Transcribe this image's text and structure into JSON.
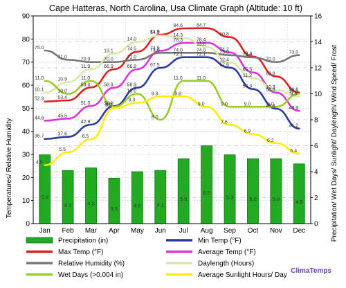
{
  "chart_data": {
    "type": "line",
    "title": "Cape Hatteras, North Carolina, Usa Climate Graph (Altitude: 10 ft)",
    "ylabel_left": "Temperatures/ Relative Humidity",
    "ylabel_right": "Precipitation/ Wet Days/ Sunlight/ Daylength/ Wind Speed/ Frost",
    "ylim_left": [
      0,
      90
    ],
    "ylim_right": [
      0,
      16
    ],
    "yticks_left": [
      "0",
      "10",
      "20",
      "30",
      "40",
      "50",
      "60",
      "70",
      "80",
      "90"
    ],
    "yticks_right": [
      "0",
      "2",
      "4",
      "6",
      "8",
      "10",
      "12",
      "14",
      "16"
    ],
    "categories": [
      "Jan",
      "Feb",
      "Mar",
      "Apr",
      "May",
      "Jun",
      "Jul",
      "Aug",
      "Sep",
      "Oct",
      "Nov",
      "Dec"
    ],
    "grid": true,
    "series": [
      {
        "name": "Precipitation (in)",
        "kind": "bar",
        "axis": "right",
        "color": "#22aa22",
        "values": [
          5.3,
          4.1,
          4.3,
          3.5,
          4.0,
          4.1,
          5.0,
          6.0,
          5.3,
          5.0,
          5.0,
          4.6
        ],
        "labels": [
          "5.3",
          "4.1",
          "4.3",
          "3.5",
          "4.0",
          "4.1",
          "5.0",
          "6.0",
          "5.3",
          "5.0",
          "5.0",
          "4.6"
        ]
      },
      {
        "name": "Min Temp (°F)",
        "kind": "line",
        "axis": "left",
        "color": "#2b3a9c",
        "values": [
          36.7,
          37.6,
          42.9,
          50.9,
          58.9,
          67.5,
          72.1,
          72.1,
          67.6,
          58.3,
          49.8,
          41.2
        ],
        "labels": [
          "36.7",
          "37.6",
          "42.9",
          "50.9",
          "58.9",
          "67.5",
          "72.1",
          "72.1",
          "67.6",
          "58.3",
          "49.8",
          "41.2"
        ]
      },
      {
        "name": "Max Temp (°F)",
        "kind": "line",
        "axis": "left",
        "color": "#e02020",
        "values": [
          52.9,
          53.4,
          59.0,
          66.9,
          74.5,
          81.9,
          84.6,
          84.7,
          80.8,
          72.4,
          63.8,
          56.8
        ],
        "labels": [
          "52.9",
          "53.4",
          "59.0",
          "66.9",
          "74.5",
          "81.9",
          "84.6",
          "84.7",
          "80.8",
          "72.4",
          "63.8",
          "56.8"
        ]
      },
      {
        "name": "Average Temp (°F)",
        "kind": "line",
        "axis": "left",
        "color": "#dd33dd",
        "values": [
          44.6,
          45.5,
          51.0,
          58.9,
          66.9,
          74.9,
          78.3,
          78.4,
          74.2,
          65.5,
          56.8,
          48.9
        ],
        "labels": [
          "44.6",
          "45.5",
          "51.0",
          "58.9",
          "66.9",
          "74.9",
          "78.3",
          "78.4",
          "74.2",
          "65.5",
          "56.8",
          "48.9"
        ]
      },
      {
        "name": "Relative Humidity (%)",
        "kind": "line",
        "axis": "left",
        "color": "#777777",
        "values": [
          75.0,
          71.0,
          70.0,
          70.0,
          71.0,
          74.0,
          74.0,
          74.0,
          73.0,
          72.0,
          70.0,
          73.0
        ],
        "labels": [
          "75.0",
          "71.0",
          "70.0",
          "70.0",
          "71.0",
          "74.0",
          "74.0",
          "74.0",
          "73.0",
          "72.0",
          "70.0",
          "73.0"
        ]
      },
      {
        "name": "Daylength (Hours)",
        "kind": "line",
        "axis": "right",
        "color": "#d8e8a8",
        "values": [
          10.1,
          10.9,
          11.9,
          13.1,
          14.0,
          14.5,
          14.3,
          13.6,
          12.4,
          11.2,
          10.3,
          9.8
        ],
        "labels": [
          "10.1",
          "10.9",
          "11.9",
          "13.1",
          "14.0",
          "14.5",
          "14.3",
          "13.6",
          "12.4",
          "11.2",
          "10.3",
          "9.8"
        ]
      },
      {
        "name": "Wet Days (>0.004 in)",
        "kind": "line",
        "axis": "right",
        "color": "#99cc22",
        "values": [
          11.0,
          10.0,
          11.0,
          9.0,
          10.0,
          8.0,
          11.0,
          11.0,
          9.0,
          9.0,
          9.0,
          10.0
        ],
        "labels": [
          "11.0",
          "10.0",
          "11.0",
          "9.0",
          "10.0",
          "8.0",
          "11.0",
          "11.0",
          "9.0",
          "9.0",
          "9.0",
          "10.0"
        ]
      },
      {
        "name": "Average Sunlight Hours/ Day",
        "kind": "line",
        "axis": "right",
        "color": "#ffee00",
        "values": [
          4.5,
          5.5,
          6.5,
          8.9,
          9.3,
          9.8,
          9.8,
          9.0,
          7.6,
          6.9,
          6.2,
          5.4
        ],
        "labels": [
          "4.5",
          "5.5",
          "6.5",
          "8.9",
          "9.3",
          "9.8",
          "9.8",
          "9.0",
          "7.6",
          "6.9",
          "6.2",
          "5.4"
        ]
      }
    ],
    "legend": {
      "placement": "bottom",
      "items": [
        {
          "label": "Precipitation (in)",
          "color": "#22aa22",
          "shape": "bar"
        },
        {
          "label": "Min Temp (°F)",
          "color": "#2b3a9c",
          "shape": "line"
        },
        {
          "label": "Max Temp (°F)",
          "color": "#e02020",
          "shape": "line"
        },
        {
          "label": "Average Temp (°F)",
          "color": "#dd33dd",
          "shape": "line"
        },
        {
          "label": "Relative Humidity (%)",
          "color": "#777777",
          "shape": "line"
        },
        {
          "label": "Daylength (Hours)",
          "color": "#d8e8a8",
          "shape": "line"
        },
        {
          "label": "Wet Days (>0.004 in)",
          "color": "#99cc22",
          "shape": "line"
        },
        {
          "label": "Average Sunlight Hours/ Day",
          "color": "#ffee00",
          "shape": "line"
        }
      ]
    },
    "brand": "ClimaTemps"
  }
}
